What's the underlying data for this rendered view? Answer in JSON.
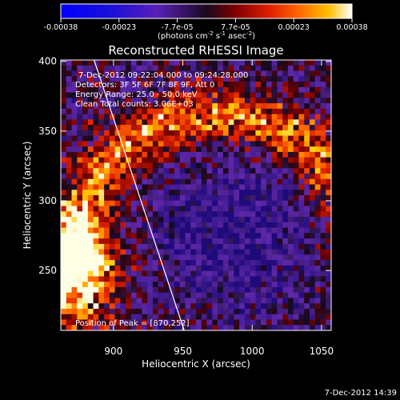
{
  "chart_data": {
    "type": "heatmap",
    "title": "Reconstructed RHESSI Image",
    "xlabel": "Heliocentric X (arcsec)",
    "ylabel": "Heliocentric Y (arcsec)",
    "xlim": [
      862,
      1057
    ],
    "ylim": [
      207,
      401
    ],
    "xticks": [
      900,
      950,
      1000,
      1050
    ],
    "yticks": [
      250,
      300,
      350,
      400
    ],
    "colorbar": {
      "ticks": [
        "-0.00038",
        "-0.00023",
        "-7.7e-05",
        "7.7e-05",
        "0.00023",
        "0.00038"
      ],
      "label": "(photons cm",
      "label_sup1": "-2",
      "label_mid": " s",
      "label_sup2": "-1",
      "label_end": " asec",
      "label_sup3": "-2",
      "label_close": ")",
      "min": -0.00038,
      "max": 0.00038,
      "colormap": "rhessi-diverging-blue-to-white"
    },
    "annotations": [
      "7-Dec-2012 09:22:04.000 to 09:24:28.000",
      "Detectors: 3F 5F 6F 7F 8F 9F, Att 0",
      "Energy Range: 25.0 - 50.0 keV",
      "Clean    Total counts: 3.06E+03",
      "Position of Peak = [870,252]"
    ],
    "peak": {
      "x": 870,
      "y": 252
    },
    "limb_line": [
      {
        "x": 886,
        "y": 401
      },
      {
        "x": 951,
        "y": 207
      }
    ]
  },
  "footer": {
    "timestamp": "7-Dec-2012 14:39"
  }
}
